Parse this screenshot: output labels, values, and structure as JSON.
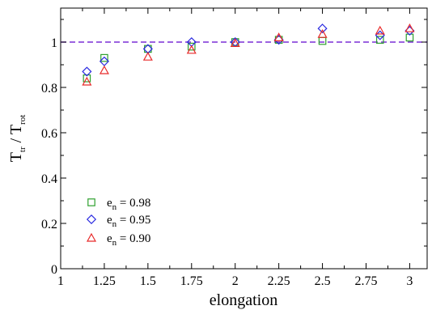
{
  "chart_data": {
    "type": "scatter",
    "title": "",
    "xlabel": "elongation",
    "ylabel": {
      "main": "T",
      "sub1": "tr",
      "sep": " / T",
      "sub2": "rot"
    },
    "xlim": [
      1,
      3.1
    ],
    "ylim": [
      0,
      1.15
    ],
    "x_ticks": [
      1,
      1.25,
      1.5,
      1.75,
      2,
      2.25,
      2.5,
      2.75,
      3
    ],
    "x_tick_labels": [
      "1",
      "1.25",
      "1.5",
      "1.75",
      "2",
      "2.25",
      "2.5",
      "2.75",
      "3"
    ],
    "y_ticks": [
      0,
      0.2,
      0.4,
      0.6,
      0.8,
      1
    ],
    "y_tick_labels": [
      "0",
      "0.2",
      "0.4",
      "0.6",
      "0.8",
      "1"
    ],
    "grid": false,
    "legend_position": "bottom-left",
    "reference_line": {
      "y": 1,
      "style": "dashed",
      "color": "#7b2fd6"
    },
    "series": [
      {
        "label_main": "e",
        "label_sub": "n",
        "label_value": " = 0.98",
        "marker": "square",
        "color": "#2ea02e",
        "x": [
          1.15,
          1.25,
          1.5,
          1.75,
          2,
          2.25,
          2.5,
          2.83,
          3
        ],
        "y": [
          0.84,
          0.93,
          0.97,
          0.98,
          1.0,
          1.01,
          1.005,
          1.01,
          1.02
        ]
      },
      {
        "label_main": "e",
        "label_sub": "n",
        "label_value": " = 0.95",
        "marker": "diamond",
        "color": "#2a2ae0",
        "x": [
          1.15,
          1.25,
          1.5,
          1.75,
          2,
          2.25,
          2.5,
          2.83,
          3
        ],
        "y": [
          0.87,
          0.915,
          0.97,
          1.0,
          1.0,
          1.01,
          1.06,
          1.03,
          1.05
        ]
      },
      {
        "label_main": "e",
        "label_sub": "n",
        "label_value": " = 0.90",
        "marker": "triangle",
        "color": "#e82a2a",
        "x": [
          1.15,
          1.25,
          1.5,
          1.75,
          2,
          2.25,
          2.5,
          2.83,
          3
        ],
        "y": [
          0.825,
          0.875,
          0.935,
          0.965,
          0.995,
          1.02,
          1.035,
          1.05,
          1.06
        ]
      }
    ]
  }
}
